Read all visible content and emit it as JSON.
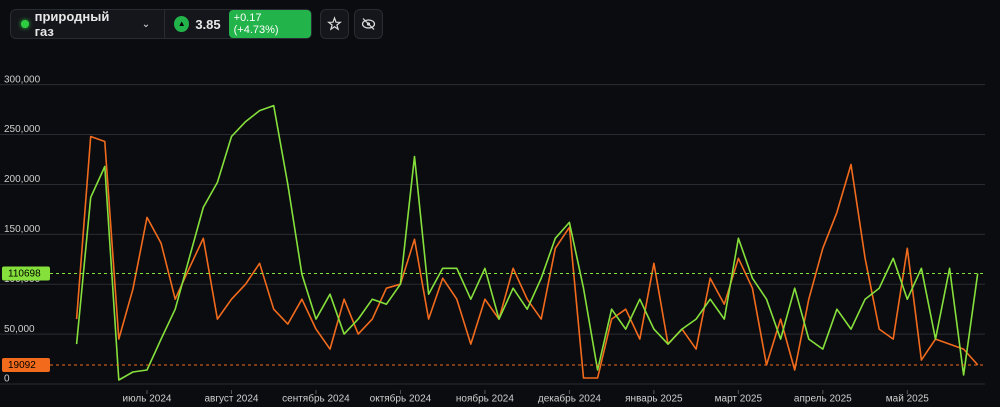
{
  "header": {
    "instrument": "природный газ",
    "price": "3.85",
    "change": "+0.17 (+4.73%)"
  },
  "chart_data": {
    "type": "line",
    "categories": [
      null,
      null,
      null,
      null,
      null,
      "июль 2024",
      null,
      null,
      null,
      null,
      null,
      "август 2024",
      null,
      null,
      null,
      null,
      null,
      "сентябрь 2024",
      null,
      null,
      null,
      null,
      null,
      "октябрь 2024",
      null,
      null,
      null,
      null,
      null,
      "ноябрь 2024",
      null,
      null,
      null,
      null,
      null,
      "декабрь 2024",
      null,
      null,
      null,
      null,
      null,
      "январь 2025",
      null,
      null,
      null,
      null,
      null,
      "март 2025",
      null,
      null,
      null,
      null,
      null,
      "апрель 2025",
      null,
      null,
      null,
      null,
      null,
      "май 2025",
      null,
      null,
      null,
      null,
      null
    ],
    "series": [
      {
        "color": "#f26b1d",
        "values": [
          65000,
          248000,
          243000,
          45000,
          95000,
          167000,
          141000,
          85000,
          116000,
          146000,
          65000,
          85000,
          100000,
          121000,
          75000,
          60000,
          85000,
          55000,
          35000,
          85000,
          50000,
          65000,
          96000,
          100000,
          145000,
          65000,
          106000,
          85000,
          40000,
          85000,
          65000,
          116000,
          85000,
          65000,
          136000,
          157000,
          6000,
          6000,
          65000,
          75000,
          45000,
          121000,
          40000,
          55000,
          35000,
          106000,
          80000,
          126000,
          96000,
          19000,
          65000,
          14000,
          85000,
          136000,
          172000,
          220000,
          126000,
          55000,
          45000,
          136000,
          24000,
          45000,
          40000,
          35000,
          19092
        ]
      },
      {
        "color": "#86e03c",
        "values": [
          40000,
          187000,
          218000,
          4000,
          12000,
          14000,
          45000,
          75000,
          126000,
          177000,
          202000,
          248000,
          263000,
          274000,
          279000,
          200000,
          110000,
          65000,
          90000,
          50000,
          65000,
          85000,
          80000,
          100000,
          228000,
          90000,
          116000,
          116000,
          85000,
          116000,
          65000,
          96000,
          75000,
          106000,
          146000,
          162000,
          96000,
          14000,
          75000,
          55000,
          85000,
          55000,
          40000,
          55000,
          65000,
          85000,
          65000,
          146000,
          106000,
          85000,
          45000,
          96000,
          45000,
          35000,
          75000,
          55000,
          85000,
          96000,
          126000,
          85000,
          116000,
          45000,
          116000,
          9000,
          110698
        ]
      }
    ],
    "ylim": [
      0,
      320000
    ],
    "yticks": [
      {
        "value": 0,
        "label": "0"
      },
      {
        "value": 50000,
        "label": "50,000"
      },
      {
        "value": 100000,
        "label": "100,000"
      },
      {
        "value": 150000,
        "label": "150,000"
      },
      {
        "value": 200000,
        "label": "200,000"
      },
      {
        "value": 250000,
        "label": "250,000"
      },
      {
        "value": 300000,
        "label": "300,000"
      }
    ],
    "grid": true,
    "reference_lines": [
      {
        "value": 110698,
        "color": "#86e03c"
      },
      {
        "value": 19092,
        "color": "#f26b1d"
      }
    ]
  }
}
